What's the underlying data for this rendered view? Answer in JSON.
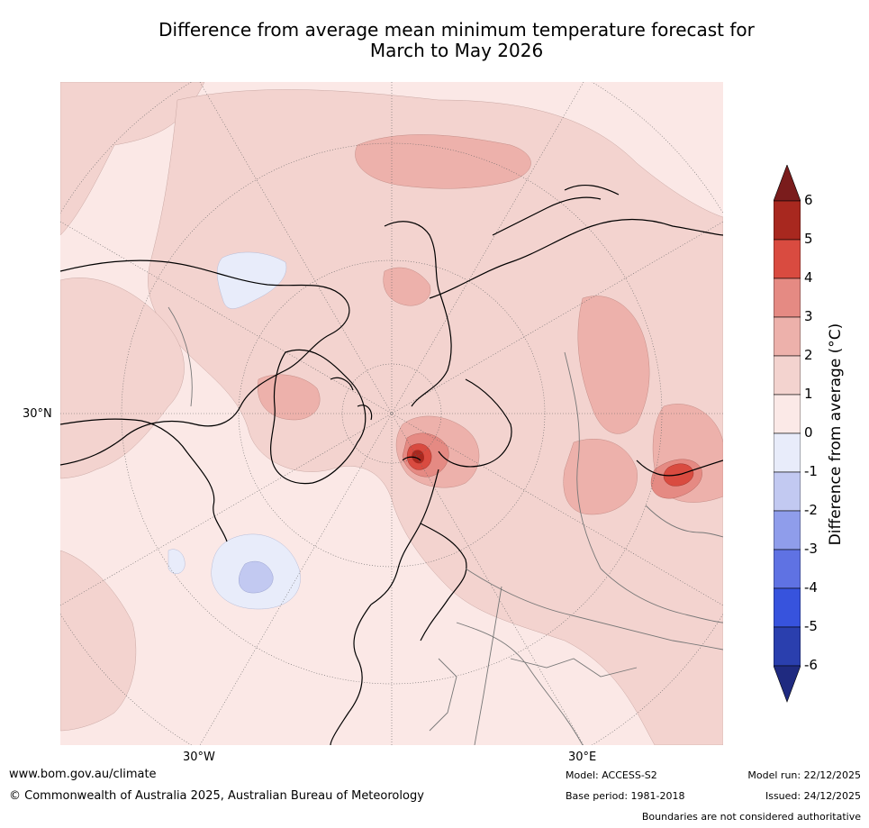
{
  "title_line1": "Difference from average mean minimum temperature forecast for",
  "title_line2": "March to May 2026",
  "map": {
    "lat_label": "30°N",
    "lon_labels": [
      "30°W",
      "30°E"
    ]
  },
  "colorbar": {
    "label": "Difference from average (°C)",
    "ticks": [
      "6",
      "5",
      "4",
      "3",
      "2",
      "1",
      "0",
      "-1",
      "-2",
      "-3",
      "-4",
      "-5",
      "-6"
    ],
    "colors": [
      "#7a1c1c",
      "#a8281f",
      "#d94b40",
      "#e58a83",
      "#edb1ab",
      "#f3d3cf",
      "#fbe9e7",
      "#e8ecfa",
      "#c2c9f1",
      "#8f9deb",
      "#5f72e3",
      "#3753dd",
      "#2a3fae",
      "#1f2a80"
    ]
  },
  "footer": {
    "website": "www.bom.gov.au/climate",
    "copyright": "© Commonwealth of Australia 2025, Australian Bureau of Meteorology",
    "model": "Model: ACCESS-S2",
    "base_period": "Base period: 1981-2018",
    "model_run": "Model run: 22/12/2025",
    "issued": "Issued: 24/12/2025",
    "disclaimer": "Boundaries are not considered authoritative"
  }
}
